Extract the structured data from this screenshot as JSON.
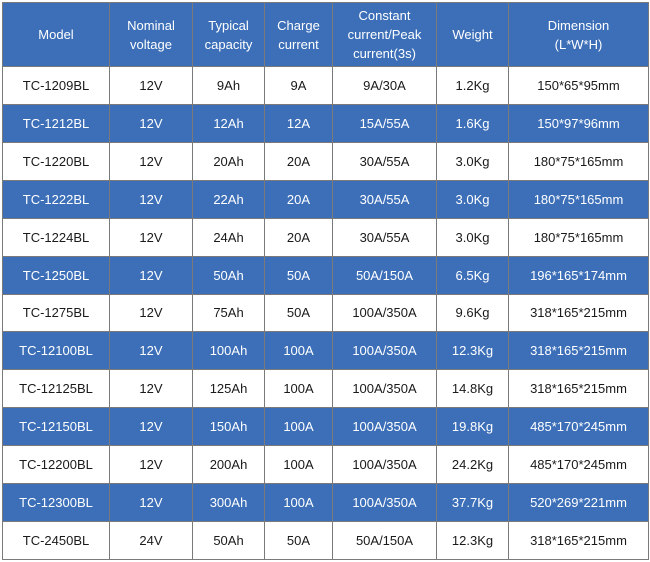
{
  "table": {
    "headers": [
      "Model",
      "Nominal voltage",
      "Typical capacity",
      "Charge current",
      "Constant current/Peak current(3s)",
      "Weight",
      "Dimension (L*W*H)"
    ],
    "header_lines": [
      [
        "Model"
      ],
      [
        "Nominal",
        "voltage"
      ],
      [
        "Typical",
        "capacity"
      ],
      [
        "Charge",
        "current"
      ],
      [
        "Constant",
        "current/Peak",
        "current(3s)"
      ],
      [
        "Weight"
      ],
      [
        "Dimension",
        "(L*W*H)"
      ]
    ],
    "rows": [
      [
        "TC-1209BL",
        "12V",
        "9Ah",
        "9A",
        "9A/30A",
        "1.2Kg",
        "150*65*95mm"
      ],
      [
        "TC-1212BL",
        "12V",
        "12Ah",
        "12A",
        "15A/55A",
        "1.6Kg",
        "150*97*96mm"
      ],
      [
        "TC-1220BL",
        "12V",
        "20Ah",
        "20A",
        "30A/55A",
        "3.0Kg",
        "180*75*165mm"
      ],
      [
        "TC-1222BL",
        "12V",
        "22Ah",
        "20A",
        "30A/55A",
        "3.0Kg",
        "180*75*165mm"
      ],
      [
        "TC-1224BL",
        "12V",
        "24Ah",
        "20A",
        "30A/55A",
        "3.0Kg",
        "180*75*165mm"
      ],
      [
        "TC-1250BL",
        "12V",
        "50Ah",
        "50A",
        "50A/150A",
        "6.5Kg",
        "196*165*174mm"
      ],
      [
        "TC-1275BL",
        "12V",
        "75Ah",
        "50A",
        "100A/350A",
        "9.6Kg",
        "318*165*215mm"
      ],
      [
        "TC-12100BL",
        "12V",
        "100Ah",
        "100A",
        "100A/350A",
        "12.3Kg",
        "318*165*215mm"
      ],
      [
        "TC-12125BL",
        "12V",
        "125Ah",
        "100A",
        "100A/350A",
        "14.8Kg",
        "318*165*215mm"
      ],
      [
        "TC-12150BL",
        "12V",
        "150Ah",
        "100A",
        "100A/350A",
        "19.8Kg",
        "485*170*245mm"
      ],
      [
        "TC-12200BL",
        "12V",
        "200Ah",
        "100A",
        "100A/350A",
        "24.2Kg",
        "485*170*245mm"
      ],
      [
        "TC-12300BL",
        "12V",
        "300Ah",
        "100A",
        "100A/350A",
        "37.7Kg",
        "520*269*221mm"
      ],
      [
        "TC-2450BL",
        "24V",
        "50Ah",
        "50A",
        "50A/150A",
        "12.3Kg",
        "318*165*215mm"
      ]
    ]
  },
  "colors": {
    "header_bg": "#3c6fb8",
    "alt_row_bg": "#3c6fb8",
    "row_bg": "#ffffff",
    "border": "#7a7a7a",
    "text_dark": "#1a1a1a",
    "text_light": "#ffffff"
  }
}
